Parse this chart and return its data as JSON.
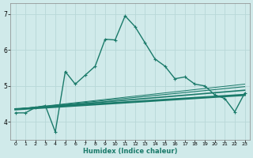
{
  "xlabel": "Humidex (Indice chaleur)",
  "background_color": "#d0eaea",
  "grid_color": "#b8d8d8",
  "line_color": "#1a7a6a",
  "xlim": [
    -0.5,
    23.5
  ],
  "ylim": [
    3.5,
    7.3
  ],
  "yticks": [
    4,
    5,
    6,
    7
  ],
  "xticks": [
    0,
    1,
    2,
    3,
    4,
    5,
    6,
    7,
    8,
    9,
    10,
    11,
    12,
    13,
    14,
    15,
    16,
    17,
    18,
    19,
    20,
    21,
    22,
    23
  ],
  "series1_x": [
    0,
    1,
    2,
    3,
    4,
    5,
    6,
    7,
    8,
    9,
    10,
    11,
    12,
    13,
    14,
    15,
    16,
    17,
    18,
    19,
    20,
    21,
    22,
    23
  ],
  "series1_y": [
    4.25,
    4.25,
    4.4,
    4.45,
    3.72,
    5.4,
    5.05,
    5.3,
    5.55,
    6.3,
    6.28,
    6.95,
    6.65,
    6.2,
    5.75,
    5.55,
    5.2,
    5.25,
    5.05,
    5.0,
    4.75,
    4.65,
    4.28,
    4.8
  ],
  "trend1_x": [
    0,
    23
  ],
  "trend1_y": [
    4.35,
    4.75
  ],
  "trend2_x": [
    0,
    23
  ],
  "trend2_y": [
    4.35,
    4.88
  ],
  "trend3_x": [
    0,
    23
  ],
  "trend3_y": [
    4.35,
    4.98
  ],
  "trend4_x": [
    0,
    23
  ],
  "trend4_y": [
    4.35,
    5.05
  ],
  "marker_size": 2.5,
  "line_width": 1.0,
  "trend_lw1": 2.0,
  "trend_lw2": 1.2,
  "trend_lw3": 0.8,
  "trend_lw4": 0.7
}
